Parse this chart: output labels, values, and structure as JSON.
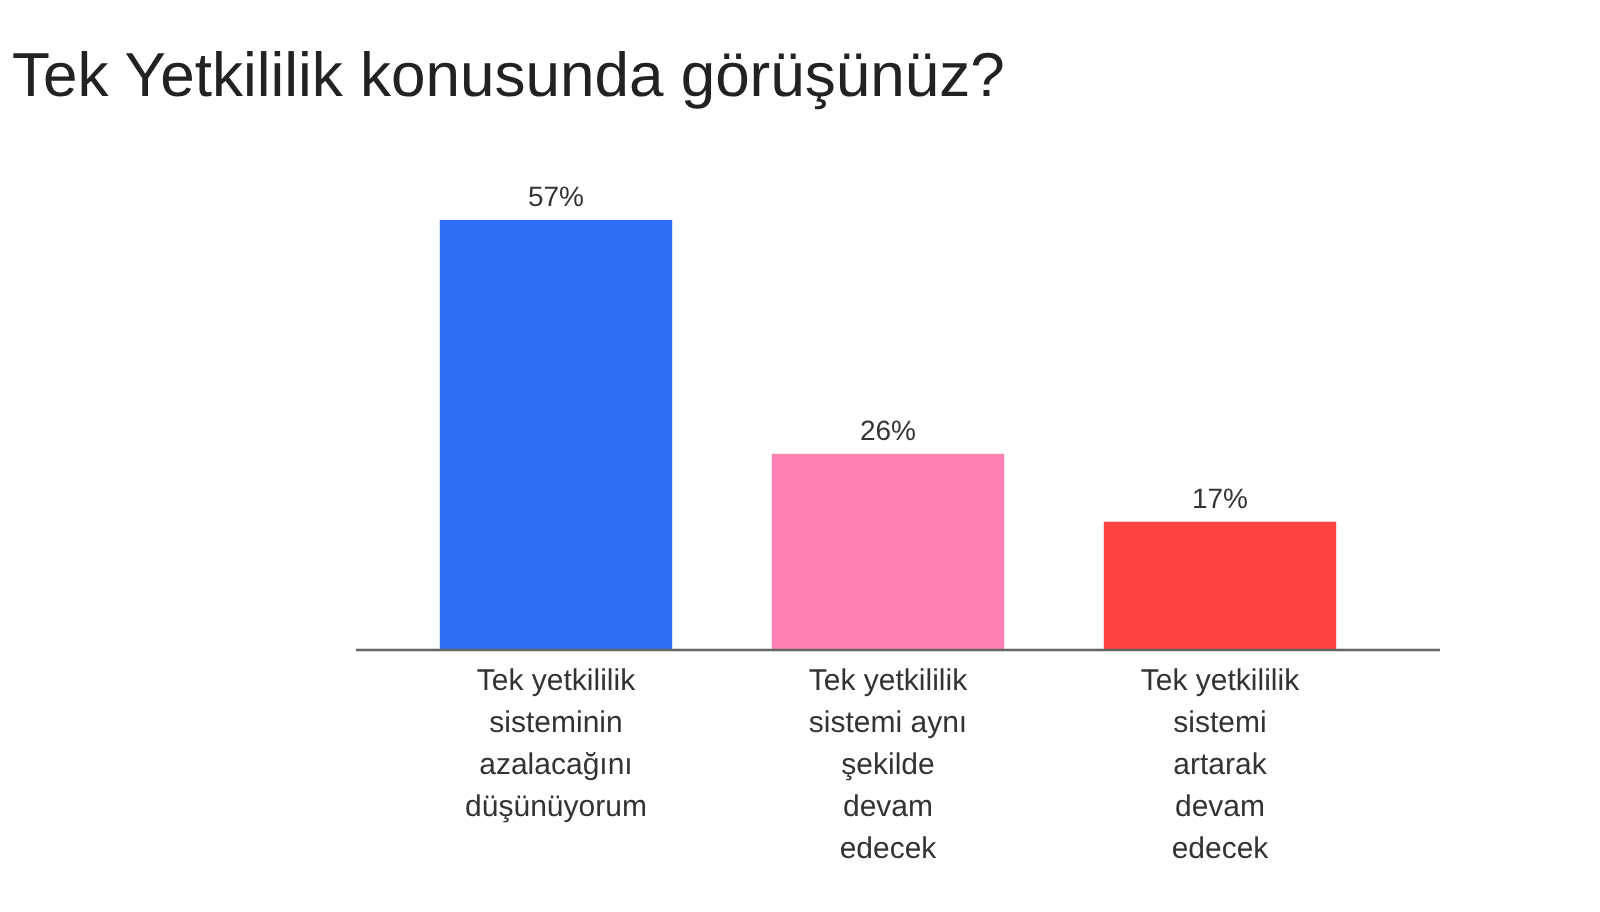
{
  "chart_data": {
    "type": "bar",
    "title": "Tek Yetkililik konusunda görüşünüz?",
    "categories": [
      "Tek yetkililik sisteminin azalacağını düşünüyorum",
      "Tek yetkililik sistemi aynı şekilde devam edecek",
      "Tek yetkililik sistemi artarak devam edecek"
    ],
    "values": [
      57,
      26,
      17
    ],
    "value_labels": [
      "57%",
      "26%",
      "17%"
    ],
    "colors": [
      "#2f6ef4",
      "#ff82b2",
      "#ff4242"
    ]
  }
}
